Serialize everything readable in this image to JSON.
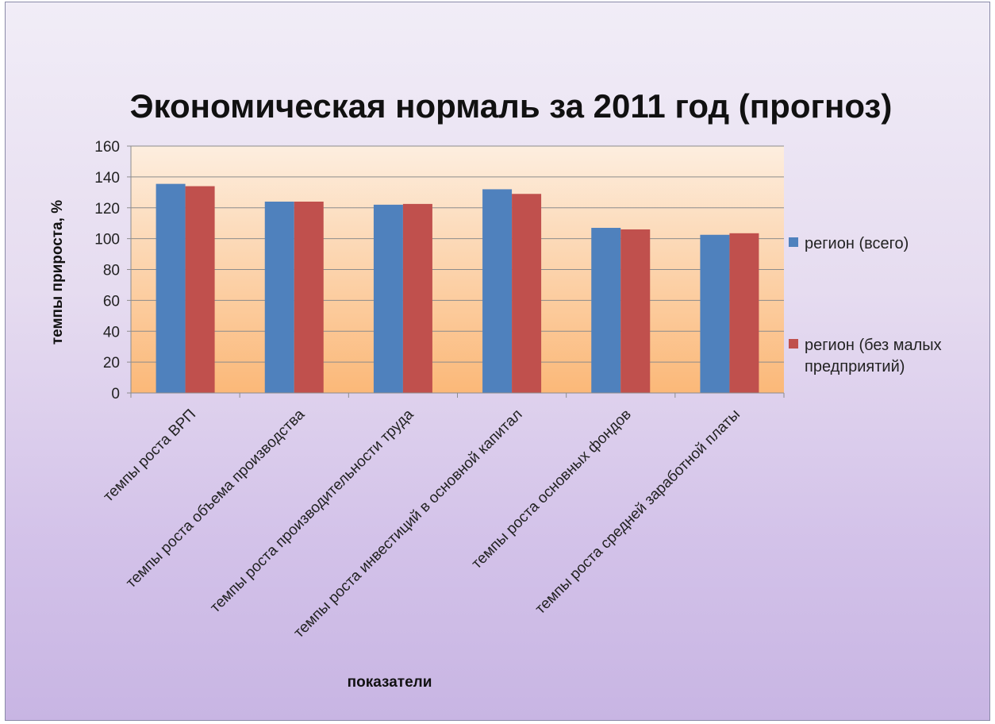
{
  "chart_data": {
    "type": "bar",
    "title": "Экономическая нормаль за 2011 год (прогноз)",
    "xlabel": "показатели",
    "ylabel": "темпы прироста, %",
    "ylim": [
      0,
      160
    ],
    "yticks": [
      0,
      20,
      40,
      60,
      80,
      100,
      120,
      140,
      160
    ],
    "grid": true,
    "legend_position": "right",
    "categories": [
      "темпы роста ВРП",
      "темпы роста объема производства",
      "темпы роста производительности труда",
      "темпы роста инвестиций  в основной капитал",
      "темпы роста основных фондов",
      "темпы роста средней заработной платы"
    ],
    "series": [
      {
        "name": "регион (всего)",
        "color": "#4f81bd",
        "values": [
          135.5,
          124,
          122,
          132,
          107,
          102.5
        ]
      },
      {
        "name": "регион (без малых предприятий)",
        "color": "#c0504d",
        "values": [
          134,
          124,
          122.5,
          129,
          106,
          103.5
        ]
      }
    ],
    "legend_lines": [
      [
        "регион (всего)"
      ],
      [
        "регион (без малых",
        "предприятий)"
      ]
    ]
  }
}
